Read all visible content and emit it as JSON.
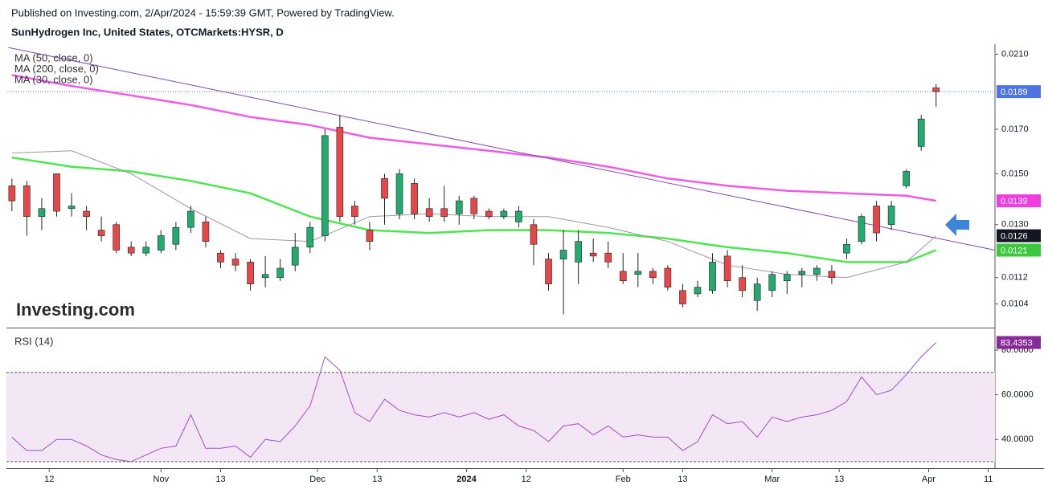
{
  "header": {
    "publisher": "Published on Investing.com, 2/Apr/2024 - 15:59:39 GMT, Powered by TradingView."
  },
  "chart_data": [
    {
      "type": "candlestick",
      "title": "SunHydrogen Inc, United States, OTCMarkets:HYSR, D",
      "watermark": "Investing.com",
      "log_scale": true,
      "up_color": "#22ab6f",
      "down_color": "#e8474a",
      "last_price_color": "#4d74e0",
      "x": [
        0,
        2,
        4,
        6,
        8,
        10,
        12,
        14,
        16,
        18,
        20,
        22,
        24,
        26,
        28,
        30,
        32,
        34,
        36,
        38,
        40,
        42,
        44,
        46,
        48,
        50,
        52,
        54,
        56,
        58,
        60,
        62,
        64,
        66,
        68,
        70,
        72,
        74,
        76,
        78,
        80,
        82,
        84,
        86,
        88,
        90,
        92,
        94,
        96,
        98,
        100,
        102,
        104,
        106,
        108,
        110,
        112,
        114,
        116,
        118,
        120,
        122,
        124
      ],
      "open": [
        0.0145,
        0.0145,
        0.0133,
        0.015,
        0.0136,
        0.0135,
        0.0128,
        0.013,
        0.0122,
        0.012,
        0.0121,
        0.0123,
        0.0129,
        0.0131,
        0.012,
        0.0118,
        0.0117,
        0.0112,
        0.0112,
        0.0116,
        0.0122,
        0.0126,
        0.0171,
        0.0137,
        0.0128,
        0.0148,
        0.0134,
        0.0146,
        0.0136,
        0.0136,
        0.0134,
        0.014,
        0.0135,
        0.0133,
        0.0131,
        0.013,
        0.0118,
        0.0118,
        0.0117,
        0.012,
        0.012,
        0.0114,
        0.0113,
        0.0114,
        0.0115,
        0.0108,
        0.0107,
        0.0108,
        0.0119,
        0.0112,
        0.0105,
        0.0108,
        0.0111,
        0.0113,
        0.0113,
        0.0114,
        0.012,
        0.0124,
        0.0137,
        0.013,
        0.0145,
        0.0162,
        0.0191
      ],
      "high": [
        0.0148,
        0.0147,
        0.014,
        0.015,
        0.0142,
        0.0137,
        0.0133,
        0.0131,
        0.0124,
        0.0124,
        0.0128,
        0.0131,
        0.0137,
        0.0133,
        0.0121,
        0.012,
        0.0118,
        0.0119,
        0.0118,
        0.0127,
        0.0131,
        0.017,
        0.0177,
        0.0139,
        0.0131,
        0.015,
        0.0152,
        0.0148,
        0.014,
        0.0145,
        0.0141,
        0.0141,
        0.0136,
        0.0136,
        0.0137,
        0.0132,
        0.012,
        0.0128,
        0.0128,
        0.0125,
        0.0124,
        0.012,
        0.012,
        0.0115,
        0.0116,
        0.011,
        0.0111,
        0.012,
        0.0121,
        0.0116,
        0.0112,
        0.0114,
        0.0114,
        0.0115,
        0.0116,
        0.0116,
        0.0125,
        0.0134,
        0.0139,
        0.0139,
        0.0152,
        0.0177,
        0.0193
      ],
      "low": [
        0.0135,
        0.0126,
        0.0128,
        0.0133,
        0.0133,
        0.0128,
        0.0124,
        0.012,
        0.0119,
        0.0119,
        0.012,
        0.0121,
        0.0127,
        0.0122,
        0.0115,
        0.0114,
        0.0108,
        0.0109,
        0.0111,
        0.0114,
        0.012,
        0.0124,
        0.0131,
        0.013,
        0.0121,
        0.013,
        0.0132,
        0.0132,
        0.0131,
        0.0131,
        0.013,
        0.0132,
        0.0132,
        0.0132,
        0.0129,
        0.0116,
        0.0108,
        0.0101,
        0.011,
        0.0117,
        0.0115,
        0.011,
        0.0109,
        0.011,
        0.0108,
        0.0103,
        0.0106,
        0.0107,
        0.0109,
        0.0106,
        0.0102,
        0.0106,
        0.0107,
        0.0109,
        0.0111,
        0.011,
        0.0118,
        0.0123,
        0.0124,
        0.0128,
        0.0144,
        0.016,
        0.0181
      ],
      "close": [
        0.0139,
        0.0133,
        0.0136,
        0.0135,
        0.0137,
        0.0133,
        0.0126,
        0.0121,
        0.012,
        0.0122,
        0.0126,
        0.0129,
        0.0135,
        0.0124,
        0.0117,
        0.0116,
        0.011,
        0.0113,
        0.0115,
        0.0122,
        0.0129,
        0.0167,
        0.0133,
        0.0133,
        0.0124,
        0.014,
        0.015,
        0.0134,
        0.0133,
        0.0133,
        0.0139,
        0.0134,
        0.0133,
        0.0135,
        0.0135,
        0.0123,
        0.011,
        0.0121,
        0.0124,
        0.0119,
        0.0117,
        0.0111,
        0.0114,
        0.0112,
        0.0109,
        0.0104,
        0.0109,
        0.0117,
        0.0111,
        0.0108,
        0.011,
        0.0113,
        0.0113,
        0.0114,
        0.0115,
        0.0112,
        0.0123,
        0.0133,
        0.0127,
        0.0137,
        0.0151,
        0.0175,
        0.0189
      ],
      "series": [
        {
          "name": "MA (50, close, 0)",
          "color": "#4ee64e",
          "tag_color": "#3cc83c",
          "width": 2.5,
          "x": [
            0,
            8,
            16,
            24,
            32,
            40,
            48,
            56,
            64,
            72,
            80,
            88,
            96,
            104,
            112,
            120,
            124
          ],
          "values": [
            0.0157,
            0.0153,
            0.0151,
            0.0147,
            0.0142,
            0.0133,
            0.0128,
            0.0127,
            0.0128,
            0.0128,
            0.0127,
            0.0125,
            0.0122,
            0.012,
            0.0117,
            0.0117,
            0.0121
          ]
        },
        {
          "name": "MA (200, close, 0)",
          "color": "#f05ae6",
          "tag_color": "#f03ce0",
          "width": 2.5,
          "x": [
            0,
            8,
            16,
            24,
            32,
            40,
            48,
            56,
            64,
            72,
            80,
            88,
            96,
            104,
            112,
            120,
            124
          ],
          "values": [
            0.0198,
            0.0192,
            0.0187,
            0.0182,
            0.0176,
            0.0172,
            0.0166,
            0.0163,
            0.016,
            0.0157,
            0.0153,
            0.0148,
            0.0145,
            0.0143,
            0.0142,
            0.0141,
            0.0139
          ]
        },
        {
          "name": "MA (30, close, 0)",
          "color": "#9a9a9a",
          "tag_color": "#131722",
          "width": 1,
          "x": [
            0,
            8,
            16,
            24,
            32,
            40,
            48,
            56,
            64,
            72,
            80,
            88,
            96,
            104,
            112,
            120,
            124
          ],
          "values": [
            0.0159,
            0.016,
            0.015,
            0.0136,
            0.0125,
            0.0124,
            0.0133,
            0.0134,
            0.0133,
            0.0133,
            0.0129,
            0.0124,
            0.0116,
            0.0113,
            0.0112,
            0.0117,
            0.0126
          ]
        }
      ],
      "trendline": {
        "color": "#8048b0",
        "x": [
          -0.5,
          131.9
        ],
        "values": [
          0.0214,
          0.0121
        ]
      },
      "xlim": [
        -1.6,
        131.9
      ],
      "ylim": [
        0.00973,
        0.0216
      ],
      "yticks": [
        {
          "value": 0.021,
          "label": "0.0210"
        },
        {
          "value": 0.017,
          "label": "0.0170"
        },
        {
          "value": 0.015,
          "label": "0.0150"
        },
        {
          "value": 0.013,
          "label": "0.0130"
        },
        {
          "value": 0.0112,
          "label": "0.0112"
        },
        {
          "value": 0.0104,
          "label": "0.0104"
        }
      ]
    },
    {
      "type": "line",
      "title": "RSI (14)",
      "x": [
        0,
        2,
        4,
        6,
        8,
        10,
        12,
        14,
        16,
        18,
        20,
        22,
        24,
        26,
        28,
        30,
        32,
        34,
        36,
        38,
        40,
        42,
        44,
        46,
        48,
        50,
        52,
        54,
        56,
        58,
        60,
        62,
        64,
        66,
        68,
        70,
        72,
        74,
        76,
        78,
        80,
        82,
        84,
        86,
        88,
        90,
        92,
        94,
        96,
        98,
        100,
        102,
        104,
        106,
        108,
        110,
        112,
        114,
        116,
        118,
        120,
        122,
        124
      ],
      "series": [
        {
          "color": "#a050c0",
          "tag_color": "#8a2a9a",
          "values": [
            41,
            35,
            35,
            40,
            40,
            37,
            33,
            31,
            30,
            33,
            36,
            37,
            51,
            36,
            36,
            37,
            32,
            40,
            39,
            46,
            55,
            77,
            71,
            52,
            48,
            58,
            53,
            51,
            50,
            52,
            50,
            52,
            49,
            51,
            46,
            44,
            39,
            46,
            47,
            42,
            46,
            41,
            42,
            41,
            41,
            35,
            39,
            51,
            47,
            48,
            41,
            50,
            48,
            50,
            51,
            53,
            57,
            68,
            60,
            62,
            69,
            77,
            83.4353
          ]
        }
      ],
      "band": [
        30,
        70
      ],
      "band_color": "#f3e6f5",
      "xlim": [
        -1.6,
        131.9
      ],
      "ylim": [
        27.1,
        89.4
      ],
      "yticks": [
        {
          "value": 40,
          "label": "40.0000"
        },
        {
          "value": 60,
          "label": "60.0000"
        },
        {
          "value": 80,
          "label": "80.0000"
        }
      ],
      "xticks": [
        {
          "value": 5,
          "label": "12"
        },
        {
          "value": 20,
          "label": "Nov"
        },
        {
          "value": 28,
          "label": "13"
        },
        {
          "value": 41,
          "label": "Dec"
        },
        {
          "value": 49,
          "label": "13"
        },
        {
          "value": 61,
          "label": "2024"
        },
        {
          "value": 69,
          "label": "12"
        },
        {
          "value": 82,
          "label": "Feb"
        },
        {
          "value": 90,
          "label": "13"
        },
        {
          "value": 102,
          "label": "Mar"
        },
        {
          "value": 111,
          "label": "13"
        },
        {
          "value": 123,
          "label": "Apr"
        },
        {
          "value": 131,
          "label": "11"
        }
      ]
    }
  ]
}
